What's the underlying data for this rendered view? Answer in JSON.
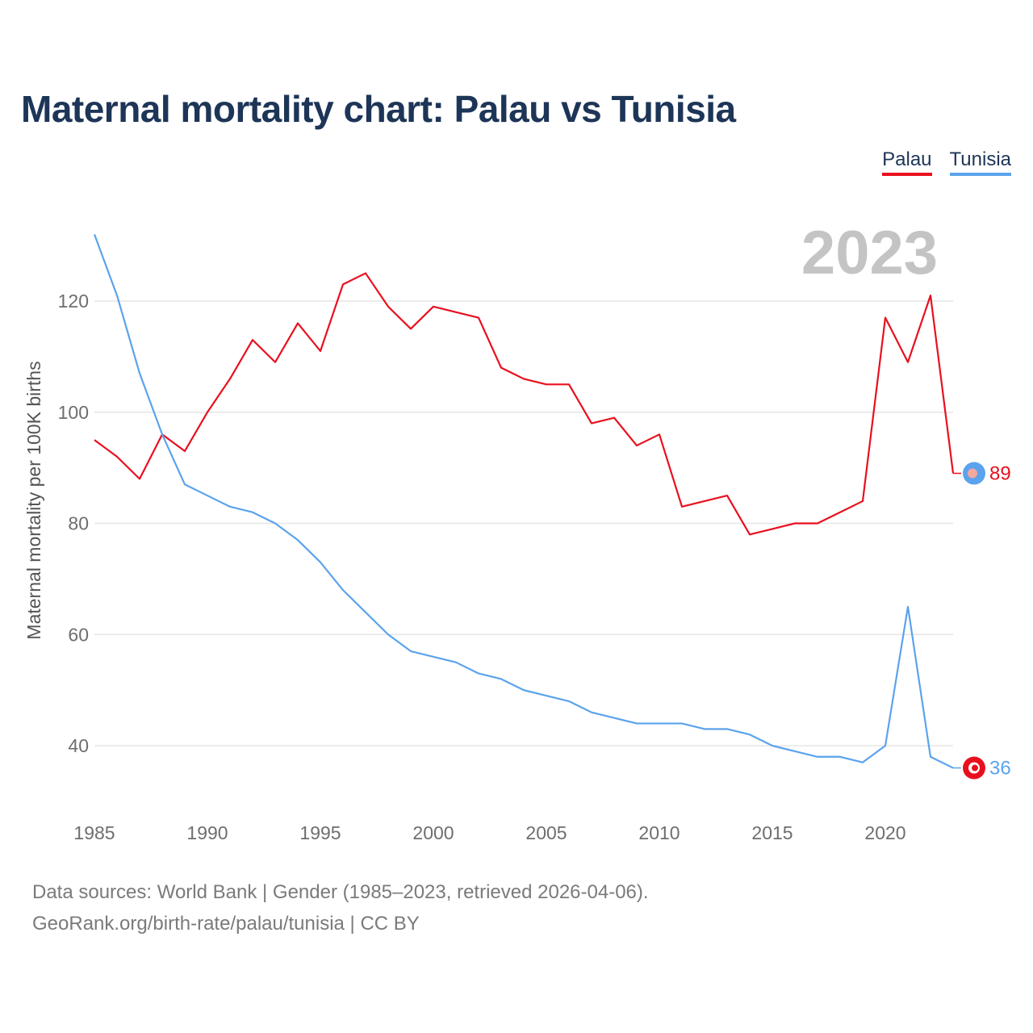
{
  "title": "Maternal mortality chart: Palau vs Tunisia",
  "year_label": "2023",
  "legend": [
    {
      "label": "Palau",
      "color": "#e8101e"
    },
    {
      "label": "Tunisia",
      "color": "#5ba3ec"
    }
  ],
  "source_line1": "Data sources: World Bank | Gender (1985–2023, retrieved 2026-04-06).",
  "source_line2": "GeoRank.org/birth-rate/palau/tunisia | CC BY",
  "chart_data": {
    "type": "line",
    "title": "Maternal mortality chart: Palau vs Tunisia",
    "xlabel": "",
    "ylabel": "Maternal mortality per 100K births",
    "xlim": [
      1985,
      2023
    ],
    "ylim": [
      30,
      132
    ],
    "x_ticks": [
      1985,
      1990,
      1995,
      2000,
      2005,
      2010,
      2015,
      2020
    ],
    "y_ticks": [
      40,
      60,
      80,
      100,
      120
    ],
    "grid": true,
    "x": [
      1985,
      1986,
      1987,
      1988,
      1989,
      1990,
      1991,
      1992,
      1993,
      1994,
      1995,
      1996,
      1997,
      1998,
      1999,
      2000,
      2001,
      2002,
      2003,
      2004,
      2005,
      2006,
      2007,
      2008,
      2009,
      2010,
      2011,
      2012,
      2013,
      2014,
      2015,
      2016,
      2017,
      2018,
      2019,
      2020,
      2021,
      2022,
      2023
    ],
    "series": [
      {
        "name": "Palau",
        "color": "#e8101e",
        "end_label": "89",
        "values": [
          95,
          92,
          88,
          96,
          93,
          100,
          106,
          113,
          109,
          116,
          111,
          123,
          125,
          119,
          115,
          119,
          118,
          117,
          108,
          106,
          105,
          105,
          98,
          99,
          94,
          96,
          83,
          84,
          85,
          78,
          79,
          80,
          80,
          82,
          84,
          117,
          109,
          121,
          89
        ]
      },
      {
        "name": "Tunisia",
        "color": "#5ba3ec",
        "end_label": "36",
        "values": [
          132,
          121,
          107,
          96,
          87,
          85,
          83,
          82,
          80,
          77,
          73,
          68,
          64,
          60,
          57,
          56,
          55,
          53,
          52,
          50,
          49,
          48,
          46,
          45,
          44,
          44,
          44,
          43,
          43,
          42,
          40,
          39,
          38,
          38,
          37,
          40,
          65,
          38,
          36
        ]
      }
    ]
  }
}
